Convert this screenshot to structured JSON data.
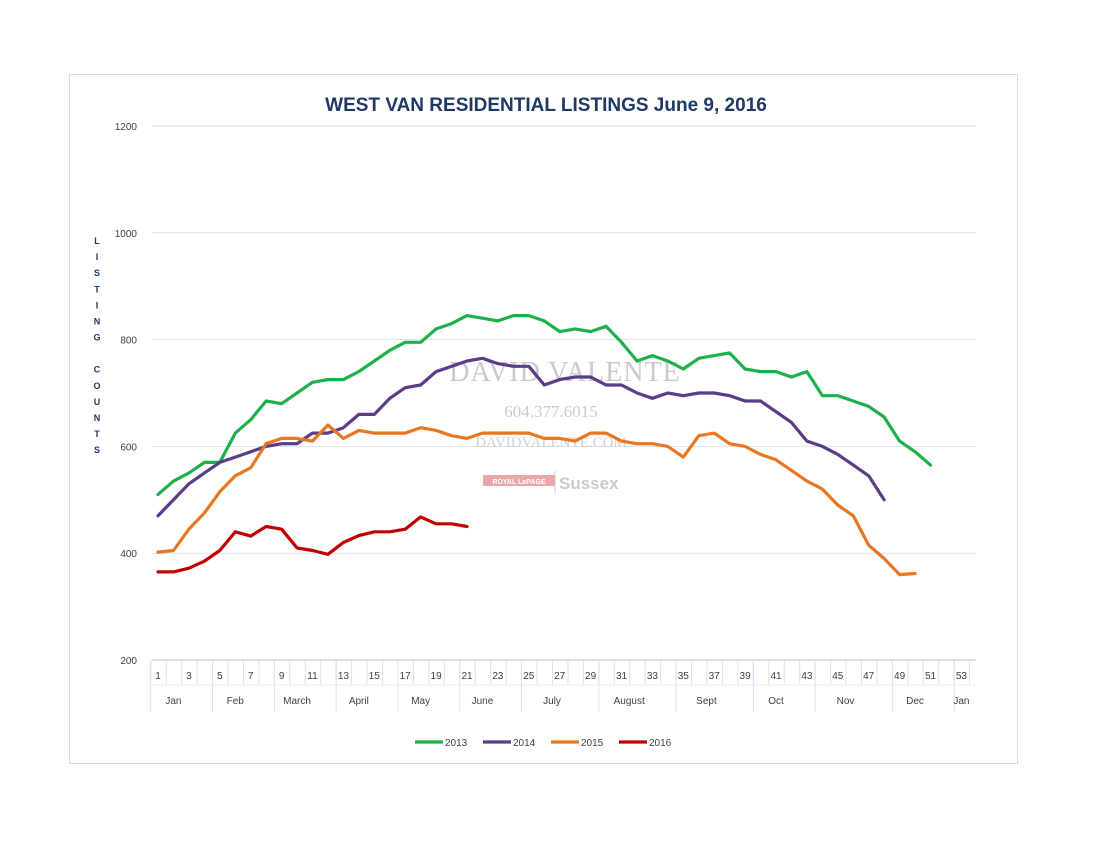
{
  "chart_data": {
    "type": "line",
    "title": "WEST VAN RESIDENTIAL LISTINGS June 9, 2016",
    "ylabel": "LISTING COUNTS",
    "ylabel_words": [
      "LISTING",
      "COUNTS"
    ],
    "ylim": [
      200,
      1200
    ],
    "yticks": [
      200,
      400,
      600,
      800,
      1000,
      1200
    ],
    "xlim": [
      1,
      53
    ],
    "xticks": [
      1,
      3,
      5,
      7,
      9,
      11,
      13,
      15,
      17,
      19,
      21,
      23,
      25,
      27,
      29,
      31,
      33,
      35,
      37,
      39,
      41,
      43,
      45,
      47,
      49,
      51,
      53
    ],
    "months": [
      {
        "label": "Jan",
        "week": 2
      },
      {
        "label": "Feb",
        "week": 6
      },
      {
        "label": "March",
        "week": 10
      },
      {
        "label": "April",
        "week": 14
      },
      {
        "label": "May",
        "week": 18
      },
      {
        "label": "June",
        "week": 22
      },
      {
        "label": "July",
        "week": 26.5
      },
      {
        "label": "August",
        "week": 31.5
      },
      {
        "label": "Sept",
        "week": 36.5
      },
      {
        "label": "Oct",
        "week": 41
      },
      {
        "label": "Nov",
        "week": 45.5
      },
      {
        "label": "Dec",
        "week": 50
      },
      {
        "label": "Jan",
        "week": 53
      }
    ],
    "month_dividers": [
      0,
      4,
      8,
      12,
      16,
      20,
      24,
      29,
      34,
      39,
      43,
      48,
      52
    ],
    "grid": true,
    "legend_position": "bottom",
    "series": [
      {
        "name": "2013",
        "color": "#1eb04b",
        "start": 1,
        "values": [
          510,
          535,
          550,
          570,
          570,
          625,
          650,
          685,
          680,
          700,
          720,
          725,
          725,
          740,
          760,
          780,
          795,
          795,
          820,
          830,
          845,
          840,
          835,
          845,
          845,
          835,
          815,
          820,
          815,
          825,
          795,
          760,
          770,
          760,
          745,
          765,
          770,
          775,
          745,
          740,
          740,
          730,
          740,
          695,
          695,
          685,
          675,
          655,
          610,
          590,
          565
        ]
      },
      {
        "name": "2014",
        "color": "#5b3c87",
        "start": 1,
        "values": [
          470,
          500,
          530,
          550,
          570,
          580,
          590,
          600,
          605,
          605,
          625,
          625,
          635,
          660,
          660,
          690,
          710,
          715,
          740,
          750,
          760,
          765,
          755,
          750,
          750,
          715,
          725,
          730,
          730,
          715,
          715,
          700,
          690,
          700,
          695,
          700,
          700,
          695,
          685,
          685,
          665,
          645,
          610,
          600,
          585,
          565,
          545,
          500
        ]
      },
      {
        "name": "2015",
        "color": "#e87722",
        "start": 1,
        "values": [
          402,
          405,
          445,
          475,
          515,
          545,
          560,
          605,
          615,
          615,
          610,
          640,
          615,
          630,
          625,
          625,
          625,
          635,
          630,
          620,
          615,
          625,
          625,
          625,
          625,
          615,
          615,
          610,
          625,
          625,
          610,
          605,
          605,
          600,
          580,
          620,
          625,
          605,
          600,
          585,
          575,
          555,
          535,
          520,
          490,
          470,
          415,
          390,
          360,
          362
        ]
      },
      {
        "name": "2016",
        "color": "#c00000",
        "start": 1,
        "values": [
          365,
          365,
          372,
          385,
          405,
          440,
          432,
          450,
          445,
          410,
          405,
          398,
          420,
          433,
          440,
          440,
          445,
          468,
          455,
          455,
          450
        ]
      }
    ]
  },
  "watermark": {
    "name": "DAVID VALENTE",
    "phone": "604.377.6015",
    "url": "DAVIDVALENTE.COM",
    "brand_small": "ROYAL LePAGE",
    "brand": "Sussex"
  }
}
